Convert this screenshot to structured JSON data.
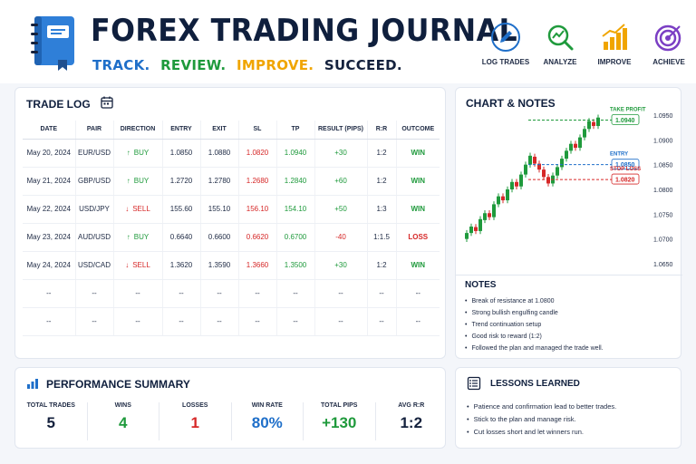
{
  "header": {
    "title": "FOREX TRADING JOURNAL",
    "tagline": [
      {
        "text": "TRACK.",
        "color": "#1f6fc9"
      },
      {
        "text": "REVIEW.",
        "color": "#1f9a3c"
      },
      {
        "text": "IMPROVE.",
        "color": "#f0a500"
      },
      {
        "text": "SUCCEED.",
        "color": "#14213d"
      }
    ],
    "steps": [
      {
        "label": "LOG TRADES",
        "icon": "pencil-icon"
      },
      {
        "label": "ANALYZE",
        "icon": "magnifier-chart-icon"
      },
      {
        "label": "IMPROVE",
        "icon": "growth-bars-icon"
      },
      {
        "label": "ACHIEVE",
        "icon": "target-icon"
      }
    ]
  },
  "trade_log": {
    "title": "TRADE LOG",
    "columns": [
      "DATE",
      "PAIR",
      "DIRECTION",
      "ENTRY",
      "EXIT",
      "SL",
      "TP",
      "RESULT (PIPS)",
      "R:R",
      "OUTCOME"
    ],
    "rows": [
      {
        "date": "May 20, 2024",
        "pair": "EUR/USD",
        "direction": "BUY",
        "entry": "1.0850",
        "exit": "1.0880",
        "sl": "1.0820",
        "tp": "1.0940",
        "result": "+30",
        "rr": "1:2",
        "outcome": "WIN"
      },
      {
        "date": "May 21, 2024",
        "pair": "GBP/USD",
        "direction": "BUY",
        "entry": "1.2720",
        "exit": "1.2780",
        "sl": "1.2680",
        "tp": "1.2840",
        "result": "+60",
        "rr": "1:2",
        "outcome": "WIN"
      },
      {
        "date": "May 22, 2024",
        "pair": "USD/JPY",
        "direction": "SELL",
        "entry": "155.60",
        "exit": "155.10",
        "sl": "156.10",
        "tp": "154.10",
        "result": "+50",
        "rr": "1:3",
        "outcome": "WIN"
      },
      {
        "date": "May 23, 2024",
        "pair": "AUD/USD",
        "direction": "BUY",
        "entry": "0.6640",
        "exit": "0.6600",
        "sl": "0.6620",
        "tp": "0.6700",
        "result": "-40",
        "rr": "1:1.5",
        "outcome": "LOSS"
      },
      {
        "date": "May 24, 2024",
        "pair": "USD/CAD",
        "direction": "SELL",
        "entry": "1.3620",
        "exit": "1.3590",
        "sl": "1.3660",
        "tp": "1.3500",
        "result": "+30",
        "rr": "1:2",
        "outcome": "WIN"
      }
    ],
    "empty_rows": 2,
    "empty_placeholder": "--"
  },
  "chart_notes": {
    "title": "CHART & NOTES",
    "chart_data": {
      "type": "candlestick",
      "y_ticks": [
        "1.0950",
        "1.0900",
        "1.0850",
        "1.0800",
        "1.0750",
        "1.0700",
        "1.0650"
      ],
      "ylim": [
        1.065,
        1.095
      ],
      "levels": [
        {
          "label": "TAKE PROFIT",
          "value": 1.094,
          "value_text": "1.0940",
          "color": "#1f9a3c"
        },
        {
          "label": "ENTRY",
          "value": 1.085,
          "value_text": "1.0850",
          "color": "#1f6fc9"
        },
        {
          "label": "STOP LOSS",
          "value": 1.082,
          "value_text": "1.0820",
          "color": "#d62828"
        }
      ],
      "candles": [
        [
          1.07,
          1.0712
        ],
        [
          1.0712,
          1.0725
        ],
        [
          1.0724,
          1.0716
        ],
        [
          1.0716,
          1.074
        ],
        [
          1.0738,
          1.0752
        ],
        [
          1.0752,
          1.0744
        ],
        [
          1.0744,
          1.077
        ],
        [
          1.077,
          1.0786
        ],
        [
          1.0786,
          1.0778
        ],
        [
          1.0778,
          1.08
        ],
        [
          1.08,
          1.0815
        ],
        [
          1.0815,
          1.0806
        ],
        [
          1.0806,
          1.083
        ],
        [
          1.083,
          1.085
        ],
        [
          1.085,
          1.0868
        ],
        [
          1.0866,
          1.0852
        ],
        [
          1.0852,
          1.084
        ],
        [
          1.084,
          1.0825
        ],
        [
          1.0825,
          1.0812
        ],
        [
          1.0812,
          1.0828
        ],
        [
          1.0828,
          1.0845
        ],
        [
          1.0845,
          1.0862
        ],
        [
          1.0862,
          1.0878
        ],
        [
          1.0878,
          1.0892
        ],
        [
          1.0892,
          1.0884
        ],
        [
          1.0884,
          1.0905
        ],
        [
          1.0905,
          1.0922
        ],
        [
          1.0922,
          1.0938
        ],
        [
          1.0936,
          1.0928
        ],
        [
          1.0928,
          1.0945
        ]
      ]
    },
    "notes_title": "NOTES",
    "notes": [
      "Break of resistance at 1.0800",
      "Strong bullish engulfing candle",
      "Trend continuation setup",
      "Good risk to reward (1:2)",
      "Followed the plan and managed the trade well."
    ]
  },
  "performance": {
    "title": "PERFORMANCE SUMMARY",
    "stats": [
      {
        "label": "TOTAL TRADES",
        "value": "5",
        "color": "#14213d"
      },
      {
        "label": "WINS",
        "value": "4",
        "color": "#1f9a3c"
      },
      {
        "label": "LOSSES",
        "value": "1",
        "color": "#d62828"
      },
      {
        "label": "WIN RATE",
        "value": "80%",
        "color": "#1f6fc9"
      },
      {
        "label": "TOTAL PIPS",
        "value": "+130",
        "color": "#1f9a3c"
      },
      {
        "label": "AVG R:R",
        "value": "1:2",
        "color": "#14213d"
      }
    ]
  },
  "lessons": {
    "title": "LESSONS LEARNED",
    "items": [
      "Patience and confirmation lead to better trades.",
      "Stick to the plan and manage risk.",
      "Cut losses short and let winners run."
    ]
  },
  "colors": {
    "accent_blue": "#1f6fc9",
    "win_green": "#1f9a3c",
    "loss_red": "#d62828",
    "navy": "#14213d"
  }
}
